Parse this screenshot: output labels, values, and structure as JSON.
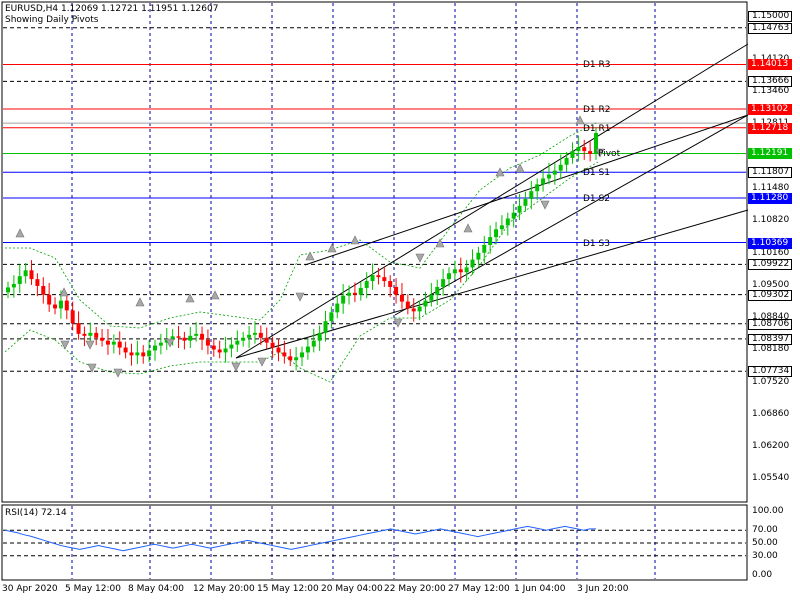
{
  "header": {
    "symbol_line": "EURUSD,H4  1.12069 1.12721 1.11951 1.12607",
    "subtitle": "Showing Daily Pivots"
  },
  "price_axis_labels": [
    "1.14120",
    "1.13460",
    "1.12811",
    "1.11480",
    "1.10820",
    "1.10160",
    "1.09500",
    "1.08840",
    "1.08180",
    "1.07520",
    "1.06860",
    "1.06200",
    "1.05540"
  ],
  "price_axis_values": [
    1.1412,
    1.1346,
    1.12811,
    1.1148,
    1.1082,
    1.1016,
    1.095,
    1.0884,
    1.0818,
    1.0752,
    1.0686,
    1.062,
    1.0554
  ],
  "price_tags": [
    {
      "label": "1.15000",
      "value": 1.15,
      "bg": "#ffffff",
      "fg": "#000000"
    },
    {
      "label": "1.14763",
      "value": 1.14763,
      "bg": "#ffffff",
      "fg": "#000000"
    },
    {
      "label": "1.14013",
      "value": 1.14013,
      "bg": "#ff0000",
      "fg": "#ffffff"
    },
    {
      "label": "1.13666",
      "value": 1.13666,
      "bg": "#ffffff",
      "fg": "#000000"
    },
    {
      "label": "1.13102",
      "value": 1.13102,
      "bg": "#ff0000",
      "fg": "#ffffff"
    },
    {
      "label": "1.12718",
      "value": 1.12718,
      "bg": "#ff0000",
      "fg": "#ffffff"
    },
    {
      "label": "1.12191",
      "value": 1.12191,
      "bg": "#00c000",
      "fg": "#ffffff"
    },
    {
      "label": "1.11807",
      "value": 1.11807,
      "bg": "#ffffff",
      "fg": "#000000"
    },
    {
      "label": "1.11280",
      "value": 1.1128,
      "bg": "#0000ff",
      "fg": "#ffffff"
    },
    {
      "label": "1.10369",
      "value": 1.10369,
      "bg": "#0000ff",
      "fg": "#ffffff"
    },
    {
      "label": "1.09922",
      "value": 1.09922,
      "bg": "#ffffff",
      "fg": "#000000"
    },
    {
      "label": "1.09302",
      "value": 1.09302,
      "bg": "#ffffff",
      "fg": "#000000"
    },
    {
      "label": "1.08706",
      "value": 1.08706,
      "bg": "#ffffff",
      "fg": "#000000"
    },
    {
      "label": "1.08397",
      "value": 1.08397,
      "bg": "#ffffff",
      "fg": "#000000"
    },
    {
      "label": "1.07734",
      "value": 1.07734,
      "bg": "#ffffff",
      "fg": "#000000"
    }
  ],
  "pivot_levels": [
    {
      "name": "D1 R3",
      "value": 1.14013,
      "color": "#ff0000"
    },
    {
      "name": "D1 R2",
      "value": 1.13102,
      "color": "#ff0000"
    },
    {
      "name": "D1 R1",
      "value": 1.12718,
      "color": "#ff0000"
    },
    {
      "name": "Pivot",
      "value": 1.12191,
      "color": "#00c000"
    },
    {
      "name": "D1 S1",
      "value": 1.11807,
      "color": "#0000ff"
    },
    {
      "name": "D1 S2",
      "value": 1.1128,
      "color": "#0000ff"
    },
    {
      "name": "D1 S3",
      "value": 1.10369,
      "color": "#0000ff"
    }
  ],
  "dashed_levels": [
    1.14763,
    1.13666,
    1.09922,
    1.09302,
    1.08706,
    1.08397,
    1.07734
  ],
  "date_labels": [
    "30 Apr 2020",
    "5 May 12:00",
    "8 May 04:00",
    "12 May 20:00",
    "15 May 12:00",
    "20 May 04:00",
    "22 May 20:00",
    "27 May 12:00",
    "1 Jun 04:00",
    "3 Jun 20:00"
  ],
  "rsi": {
    "title": "RSI(14) 72.14",
    "axis_labels": [
      "100.00",
      "70.00",
      "50.00",
      "30.00",
      "0.00"
    ],
    "axis_values": [
      100,
      70,
      50,
      30,
      0
    ],
    "values": [
      70,
      68,
      66,
      63,
      61,
      58,
      55,
      52,
      49,
      46,
      44,
      42,
      40,
      42,
      44,
      46,
      44,
      42,
      40,
      38,
      40,
      42,
      44,
      46,
      48,
      46,
      44,
      42,
      44,
      46,
      48,
      46,
      44,
      42,
      44,
      46,
      48,
      50,
      52,
      54,
      52,
      50,
      48,
      46,
      44,
      42,
      40,
      42,
      44,
      46,
      48,
      50,
      52,
      54,
      56,
      58,
      60,
      62,
      64,
      66,
      68,
      70,
      72,
      70,
      68,
      66,
      64,
      66,
      68,
      70,
      72,
      70,
      68,
      66,
      64,
      62,
      60,
      62,
      64,
      66,
      68,
      70,
      72,
      74,
      76,
      74,
      72,
      70,
      72,
      74,
      76,
      74,
      72,
      70,
      72,
      72.14
    ]
  },
  "chart_data": {
    "type": "candlestick",
    "symbol": "EURUSD",
    "timeframe": "H4",
    "ylim": [
      1.051,
      1.1525
    ],
    "closes": [
      1.0945,
      1.0952,
      1.0968,
      1.098,
      1.0962,
      1.0948,
      1.093,
      1.091,
      1.0902,
      1.0918,
      1.0898,
      1.0872,
      1.085,
      1.0846,
      1.0852,
      1.0842,
      1.0836,
      1.0828,
      1.0834,
      1.0822,
      1.0812,
      1.0806,
      1.0812,
      1.0804,
      1.0816,
      1.0826,
      1.0832,
      1.0838,
      1.0845,
      1.0842,
      1.0836,
      1.0846,
      1.085,
      1.0838,
      1.0826,
      1.0818,
      1.0812,
      1.082,
      1.0828,
      1.0836,
      1.0842,
      1.0848,
      1.0852,
      1.0842,
      1.0832,
      1.0822,
      1.0812,
      1.0804,
      1.0796,
      1.0802,
      1.0812,
      1.0824,
      1.0836,
      1.0852,
      1.0876,
      1.0894,
      1.0912,
      1.0928,
      1.0934,
      1.093,
      1.0944,
      1.0958,
      1.097,
      1.0966,
      1.0958,
      1.0946,
      1.093,
      1.0916,
      1.0902,
      1.0896,
      1.0906,
      1.0918,
      1.093,
      1.0946,
      1.0962,
      1.0974,
      1.0982,
      1.0976,
      1.0986,
      1.1002,
      1.1016,
      1.1032,
      1.1048,
      1.1064,
      1.1072,
      1.1086,
      1.1098,
      1.1112,
      1.1126,
      1.1142,
      1.1156,
      1.1168,
      1.1176,
      1.1184,
      1.1196,
      1.121,
      1.1224,
      1.1232,
      1.1224,
      1.1218,
      1.1261
    ]
  }
}
